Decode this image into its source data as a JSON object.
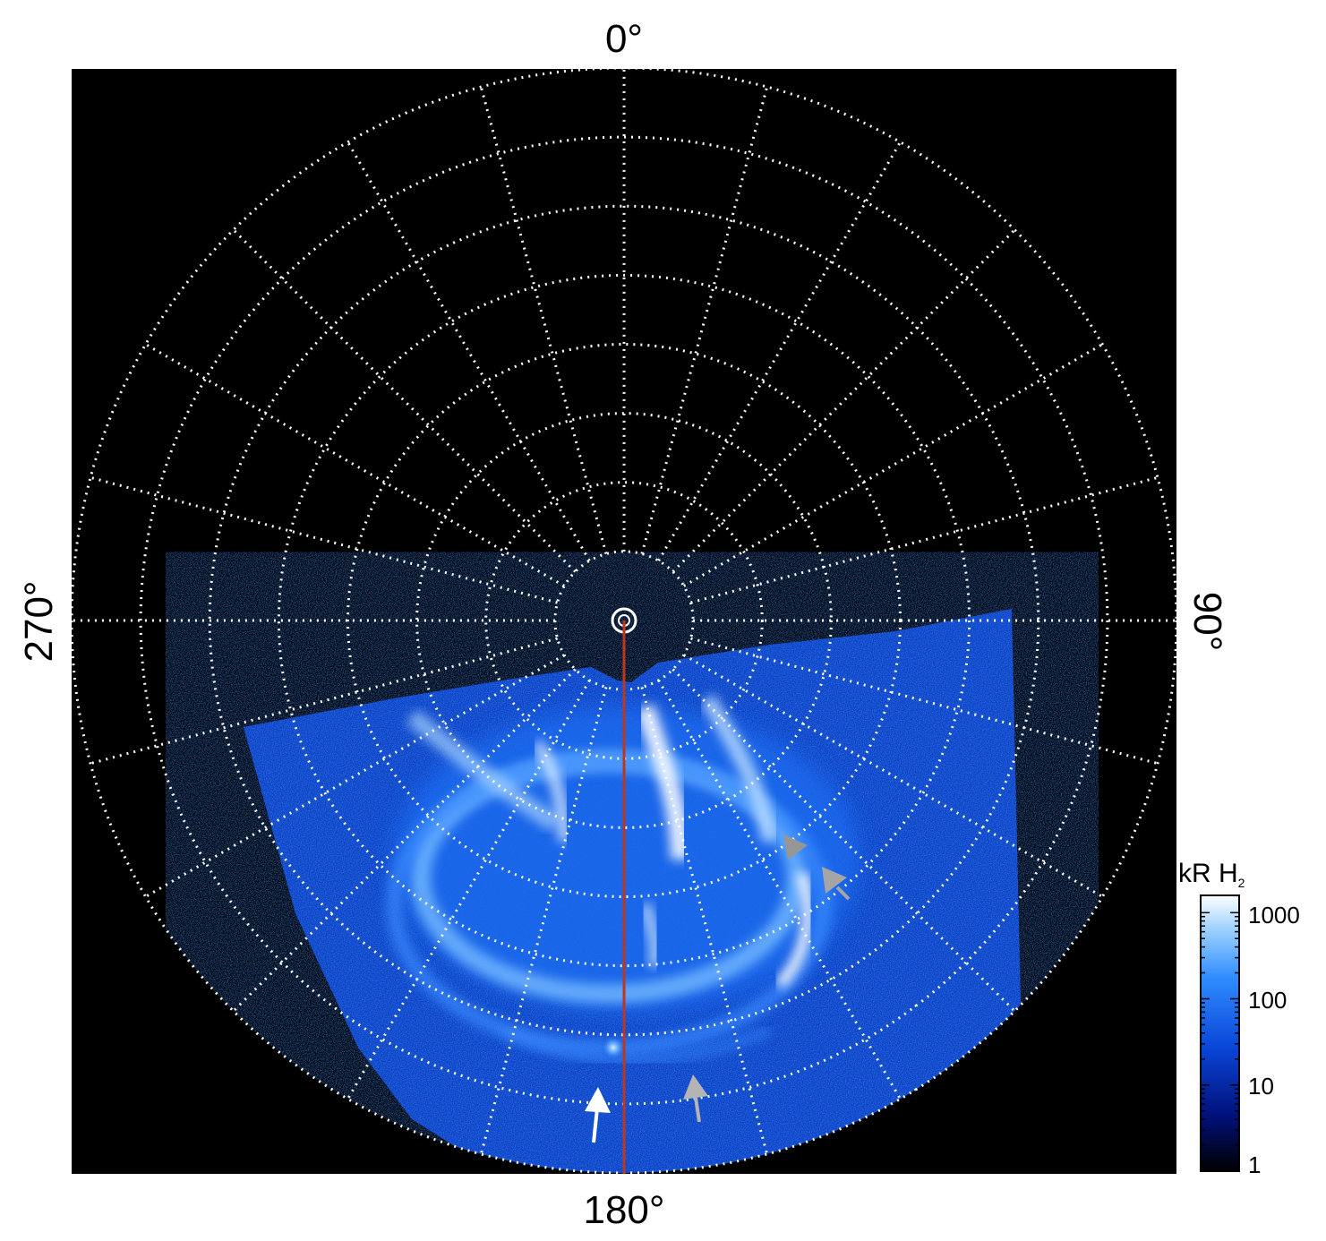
{
  "polar_map": {
    "labels": {
      "top": "0°",
      "right": "90°",
      "bottom": "180°",
      "left": "270°"
    },
    "grid": {
      "latitude_rings": 8,
      "longitude_step_deg": 15,
      "style": "dotted",
      "color": "#ffffff"
    },
    "reference_meridian": {
      "longitude_deg": 180,
      "color": "#c0361a"
    },
    "background_color": "#000000",
    "emission_colormap": [
      "#00001a",
      "#00107a",
      "#0a46d8",
      "#2f8cff",
      "#8ccaff",
      "#ffffff"
    ]
  },
  "markers": [
    {
      "name": "white-arrow",
      "color": "#ffffff"
    },
    {
      "name": "grey-arrow-bottom",
      "color": "#b4b4b4"
    },
    {
      "name": "grey-arrow-upper",
      "color": "#969696"
    },
    {
      "name": "grey-arrow-lower",
      "color": "#a5a5a5"
    }
  ],
  "colorbar": {
    "title": "kR H",
    "subscript": "2",
    "ticks": [
      "1000",
      "100",
      "10",
      "1"
    ],
    "scale": "log"
  }
}
